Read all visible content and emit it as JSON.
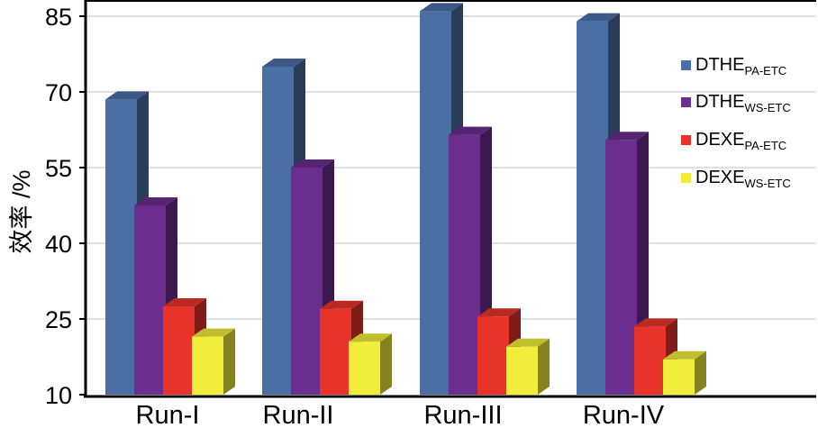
{
  "chart_data": {
    "type": "bar",
    "title": "",
    "xlabel": "",
    "ylabel": "效率 /%",
    "ylim": [
      10,
      85
    ],
    "yticks": [
      10,
      25,
      40,
      55,
      70,
      85
    ],
    "categories": [
      "Run-I",
      "Run-II",
      "Run-III",
      "Run-IV"
    ],
    "series": [
      {
        "name": "DTHE",
        "subscript": "PA-ETC",
        "color": "#4a6fa5",
        "values": [
          68.5,
          75,
          86,
          84
        ]
      },
      {
        "name": "DTHE",
        "subscript": "WS-ETC",
        "color": "#6b2d8e",
        "values": [
          47.5,
          55,
          61.5,
          60.5
        ]
      },
      {
        "name": "DEXE",
        "subscript": "PA-ETC",
        "color": "#e8332a",
        "values": [
          27.5,
          27,
          25.5,
          23.5
        ]
      },
      {
        "name": "DEXE",
        "subscript": "WS-ETC",
        "color": "#f0ee3a",
        "values": [
          21.5,
          20.5,
          19.5,
          17
        ]
      }
    ],
    "grid": true,
    "legend_position": "right"
  }
}
